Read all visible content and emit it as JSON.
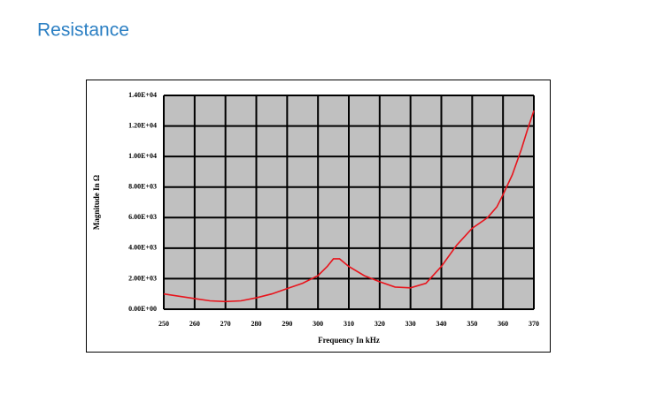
{
  "chart_data": {
    "type": "line",
    "title": "Resistance",
    "x_label": "Frequency In kHz",
    "y_label": "Magnitude In Ω",
    "x": [
      250,
      255,
      260,
      265,
      270,
      275,
      280,
      285,
      290,
      295,
      300,
      303,
      305,
      307,
      310,
      315,
      320,
      325,
      330,
      335,
      340,
      345,
      350,
      355,
      358,
      360,
      363,
      366,
      368,
      370
    ],
    "series": [
      {
        "name": "Magnitude",
        "color": "#e8141c",
        "values": [
          1000,
          850,
          700,
          550,
          500,
          550,
          750,
          1000,
          1350,
          1700,
          2200,
          2800,
          3300,
          3300,
          2800,
          2200,
          1800,
          1450,
          1400,
          1700,
          2800,
          4200,
          5300,
          6000,
          6700,
          7500,
          8800,
          10500,
          11800,
          13000
        ]
      }
    ],
    "xlim": [
      250,
      370
    ],
    "xticks": [
      250,
      260,
      270,
      280,
      290,
      300,
      310,
      320,
      330,
      340,
      350,
      360,
      370
    ],
    "ylim": [
      0,
      14000
    ],
    "yticks": [
      {
        "value": 0,
        "label": "0.00E+00"
      },
      {
        "value": 2000,
        "label": "2.00E+03"
      },
      {
        "value": 4000,
        "label": "4.00E+03"
      },
      {
        "value": 6000,
        "label": "6.00E+03"
      },
      {
        "value": 8000,
        "label": "8.00E+03"
      },
      {
        "value": 10000,
        "label": "1.00E+04"
      },
      {
        "value": 12000,
        "label": "1.20E+04"
      },
      {
        "value": 14000,
        "label": "1.40E+04"
      }
    ],
    "grid": true,
    "plot_background": "#c0c0c0"
  }
}
